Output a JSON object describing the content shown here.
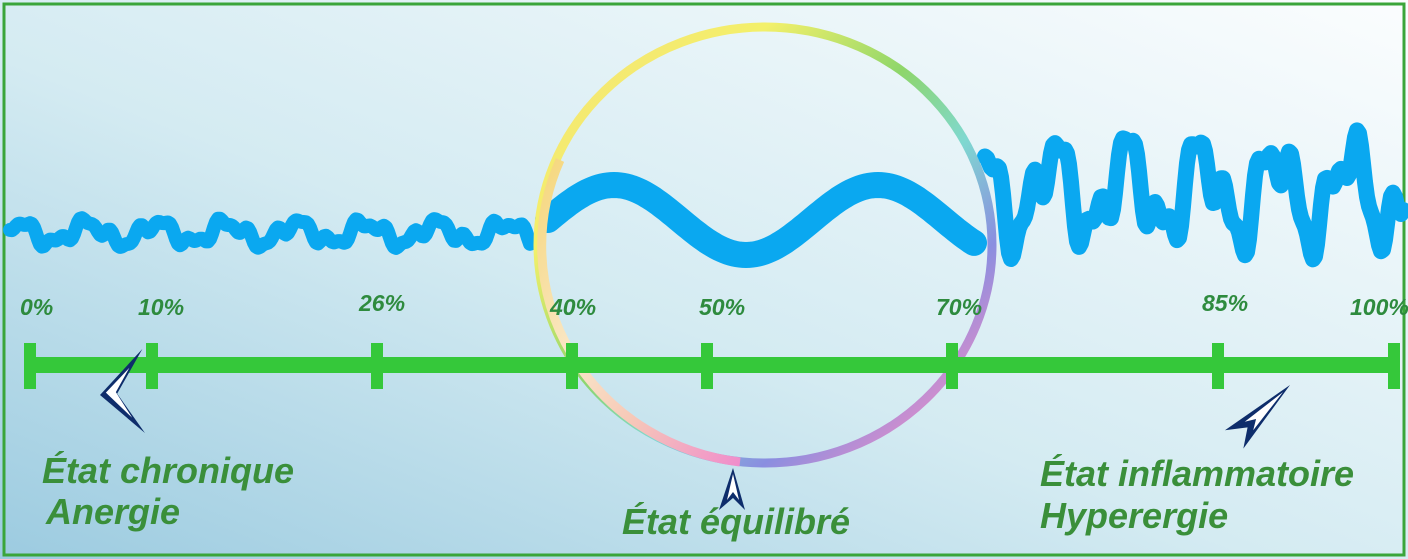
{
  "scale": {
    "ticks": [
      {
        "label": "0%",
        "value": 0
      },
      {
        "label": "10%",
        "value": 10
      },
      {
        "label": "26%",
        "value": 26
      },
      {
        "label": "40%",
        "value": 40
      },
      {
        "label": "50%",
        "value": 50
      },
      {
        "label": "70%",
        "value": 70
      },
      {
        "label": "85%",
        "value": 85
      },
      {
        "label": "100%",
        "value": 100
      }
    ]
  },
  "states": {
    "chronic": {
      "line1": "État chronique",
      "line2": "Anergie"
    },
    "balanced": {
      "line1": "État équilibré"
    },
    "inflammatory": {
      "line1": "État inflammatoire",
      "line2": "Hyperergie"
    }
  },
  "colors": {
    "frame": "#3aa53a",
    "scale_bar": "#35c83a",
    "wave": "#0aa8f0",
    "label_text": "#3a8f3a",
    "arrow": "#0e2d6b",
    "background_left": "#a9d3e4",
    "background_right": "#f8fbfd"
  }
}
